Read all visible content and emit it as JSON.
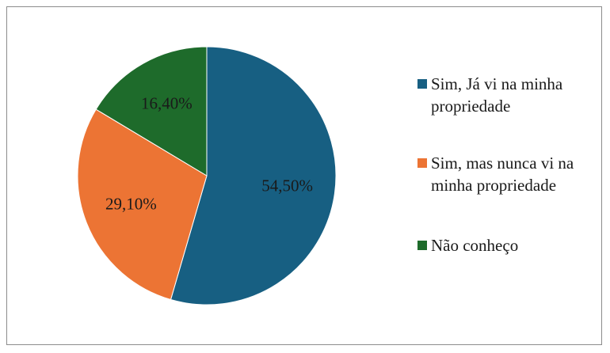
{
  "chart_data": {
    "type": "pie",
    "categories": [
      "Sim, Já vi na minha propriedade",
      "Sim, mas nunca vi na minha propriedade",
      "Não conheço"
    ],
    "values": [
      54.5,
      29.1,
      16.4
    ],
    "value_labels": [
      "54,50%",
      "29,10%",
      "16,40%"
    ],
    "colors": [
      "#175f82",
      "#ec7434",
      "#1e6b2b"
    ],
    "legend": "right"
  }
}
